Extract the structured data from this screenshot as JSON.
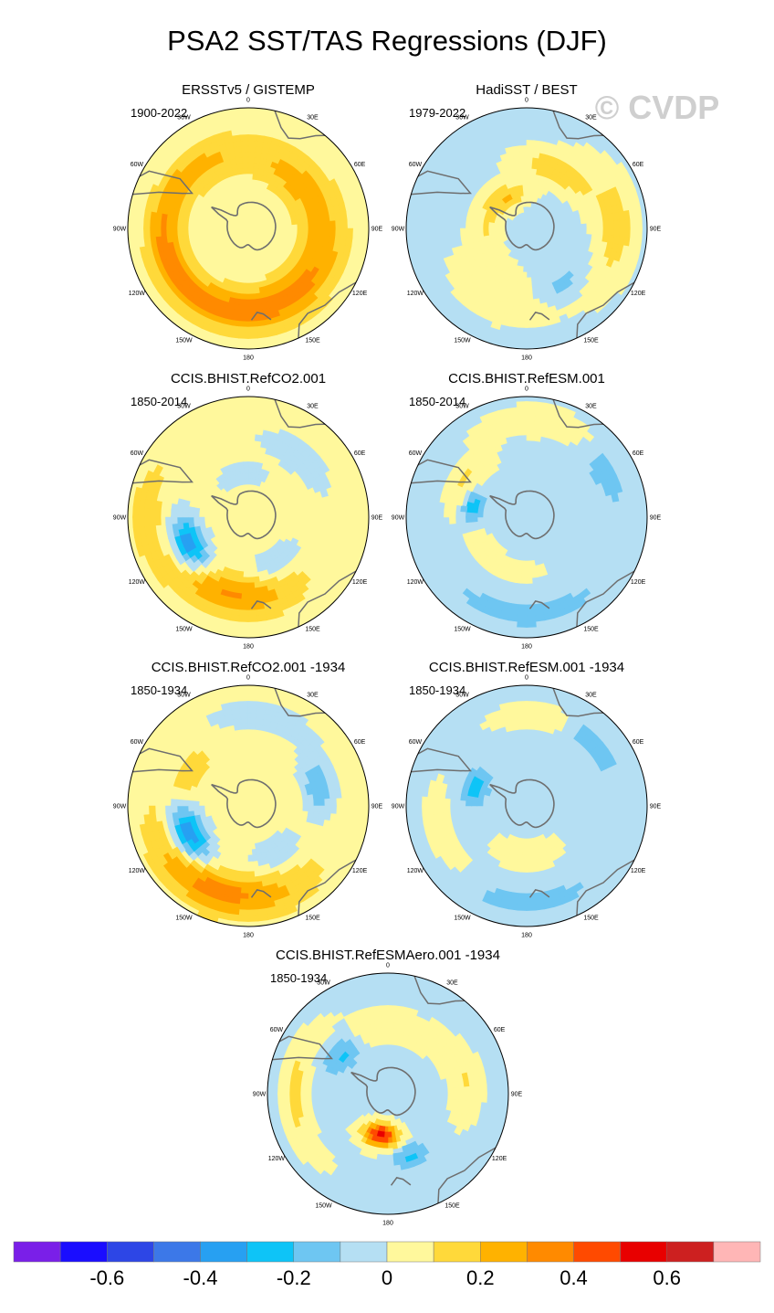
{
  "title": "PSA2 SST/TAS Regressions (DJF)",
  "watermark": "© CVDP",
  "colors": {
    "coast": "#6e6e6e",
    "outline": "#000000",
    "levels": [
      "#7a1fe8",
      "#1a0dff",
      "#2d46e6",
      "#3c78e8",
      "#27a0f2",
      "#0ec4f7",
      "#6ec6f2",
      "#b5dff3",
      "#fff89c",
      "#ffd93a",
      "#ffb200",
      "#ff8a00",
      "#ff4a00",
      "#e80000",
      "#cd2020",
      "#ffb6b6"
    ]
  },
  "chart_data": {
    "type": "polar-map",
    "projection": "south-polar stereographic",
    "variable": "PSA2 SST/TAS regression",
    "season": "DJF",
    "lon_labels": [
      "0",
      "30E",
      "60E",
      "90E",
      "120E",
      "150E",
      "180",
      "150W",
      "120W",
      "90W",
      "60W",
      "30W"
    ],
    "colorbar": {
      "orientation": "horizontal",
      "level_boundaries": [
        -0.7,
        -0.6,
        -0.5,
        -0.4,
        -0.3,
        -0.2,
        -0.1,
        0,
        0.1,
        0.2,
        0.3,
        0.4,
        0.5,
        0.6,
        0.7
      ],
      "tick_values": [
        -0.6,
        -0.4,
        -0.2,
        0,
        0.2,
        0.4,
        0.6
      ],
      "tick_labels": [
        "-0.6",
        "-0.4",
        "-0.2",
        "0",
        "0.2",
        "0.4",
        "0.6"
      ],
      "range": [
        -0.8,
        0.8
      ]
    },
    "panels": [
      {
        "title": "ERSSTv5 / GISTEMP",
        "period": "1900-2022",
        "base": 0.06,
        "features": [
          {
            "lon": 240,
            "r": 0.72,
            "w": 1.6,
            "v": 0.27,
            "rw": 0.14
          },
          {
            "lon": 140,
            "r": 0.62,
            "w": 1.3,
            "v": 0.22,
            "rw": 0.18
          },
          {
            "lon": 190,
            "r": 0.35,
            "w": 1.0,
            "v": -0.05,
            "rw": 0.18
          },
          {
            "lon": 45,
            "r": 0.55,
            "w": 0.7,
            "v": 0.15,
            "rw": 0.15
          },
          {
            "lon": 300,
            "r": 0.85,
            "w": 0.9,
            "v": -0.05,
            "rw": 0.12
          },
          {
            "lon": 320,
            "r": 0.6,
            "w": 0.8,
            "v": 0.1,
            "rw": 0.12
          }
        ]
      },
      {
        "title": "HadiSST / BEST",
        "period": "1979-2022",
        "base": -0.02,
        "features": [
          {
            "lon": 30,
            "r": 0.55,
            "w": 0.6,
            "v": 0.22,
            "rw": 0.12
          },
          {
            "lon": 200,
            "r": 0.6,
            "w": 0.7,
            "v": 0.12,
            "rw": 0.18
          },
          {
            "lon": 90,
            "r": 0.75,
            "w": 0.7,
            "v": 0.18,
            "rw": 0.15
          },
          {
            "lon": 270,
            "r": 0.35,
            "w": 0.9,
            "v": 0.12,
            "rw": 0.12
          },
          {
            "lon": 150,
            "r": 0.55,
            "w": 0.5,
            "v": -0.12,
            "rw": 0.12
          },
          {
            "lon": 330,
            "r": 0.3,
            "w": 0.6,
            "v": 0.2,
            "rw": 0.1
          }
        ]
      },
      {
        "title": "CCIS.BHIST.RefCO2.001",
        "period": "1850-2014",
        "base": 0.04,
        "features": [
          {
            "lon": 245,
            "r": 0.55,
            "w": 0.45,
            "v": -0.45,
            "rw": 0.14
          },
          {
            "lon": 195,
            "r": 0.65,
            "w": 0.9,
            "v": 0.28,
            "rw": 0.18
          },
          {
            "lon": 150,
            "r": 0.45,
            "w": 0.6,
            "v": -0.12,
            "rw": 0.15
          },
          {
            "lon": 40,
            "r": 0.65,
            "w": 0.7,
            "v": -0.08,
            "rw": 0.15
          },
          {
            "lon": 350,
            "r": 0.35,
            "w": 0.7,
            "v": -0.08,
            "rw": 0.12
          },
          {
            "lon": 270,
            "r": 0.85,
            "w": 0.6,
            "v": 0.12,
            "rw": 0.12
          }
        ]
      },
      {
        "title": "CCIS.BHIST.RefESM.001",
        "period": "1850-2014",
        "base": -0.03,
        "features": [
          {
            "lon": 280,
            "r": 0.45,
            "w": 0.35,
            "v": -0.3,
            "rw": 0.1
          },
          {
            "lon": 300,
            "r": 0.6,
            "w": 0.5,
            "v": 0.15,
            "rw": 0.1
          },
          {
            "lon": 240,
            "r": 0.45,
            "w": 1.2,
            "v": 0.12,
            "rw": 0.1
          },
          {
            "lon": 180,
            "r": 0.8,
            "w": 0.9,
            "v": -0.12,
            "rw": 0.12
          },
          {
            "lon": 60,
            "r": 0.75,
            "w": 0.4,
            "v": -0.14,
            "rw": 0.12
          },
          {
            "lon": 10,
            "r": 0.8,
            "w": 0.7,
            "v": 0.12,
            "rw": 0.12
          }
        ]
      },
      {
        "title": "CCIS.BHIST.RefCO2.001 -1934",
        "period": "1850-1934",
        "base": 0.04,
        "features": [
          {
            "lon": 245,
            "r": 0.55,
            "w": 0.45,
            "v": -0.45,
            "rw": 0.14
          },
          {
            "lon": 200,
            "r": 0.75,
            "w": 1.0,
            "v": 0.3,
            "rw": 0.18
          },
          {
            "lon": 75,
            "r": 0.6,
            "w": 0.4,
            "v": -0.22,
            "rw": 0.12
          },
          {
            "lon": 10,
            "r": 0.75,
            "w": 0.8,
            "v": -0.08,
            "rw": 0.15
          },
          {
            "lon": 150,
            "r": 0.45,
            "w": 0.6,
            "v": -0.1,
            "rw": 0.15
          },
          {
            "lon": 300,
            "r": 0.55,
            "w": 0.5,
            "v": 0.12,
            "rw": 0.12
          }
        ]
      },
      {
        "title": "CCIS.BHIST.RefESM.001 -1934",
        "period": "1850-1934",
        "base": -0.03,
        "features": [
          {
            "lon": 290,
            "r": 0.45,
            "w": 0.35,
            "v": -0.25,
            "rw": 0.1
          },
          {
            "lon": 45,
            "r": 0.75,
            "w": 0.4,
            "v": -0.22,
            "rw": 0.1
          },
          {
            "lon": 15,
            "r": 0.75,
            "w": 0.6,
            "v": 0.15,
            "rw": 0.1
          },
          {
            "lon": 180,
            "r": 0.4,
            "w": 0.7,
            "v": 0.12,
            "rw": 0.12
          },
          {
            "lon": 180,
            "r": 0.8,
            "w": 0.8,
            "v": -0.12,
            "rw": 0.1
          },
          {
            "lon": 250,
            "r": 0.75,
            "w": 0.6,
            "v": 0.1,
            "rw": 0.12
          }
        ]
      },
      {
        "title": "CCIS.BHIST.RefESMAero.001 -1934",
        "period": "1850-1934",
        "base": -0.02,
        "features": [
          {
            "lon": 190,
            "r": 0.35,
            "w": 0.4,
            "v": 0.58,
            "rw": 0.1
          },
          {
            "lon": 310,
            "r": 0.5,
            "w": 0.35,
            "v": -0.22,
            "rw": 0.12
          },
          {
            "lon": 160,
            "r": 0.55,
            "w": 0.3,
            "v": -0.2,
            "rw": 0.1
          },
          {
            "lon": 0,
            "r": 0.55,
            "w": 0.8,
            "v": 0.12,
            "rw": 0.12
          },
          {
            "lon": 270,
            "r": 0.78,
            "w": 0.7,
            "v": 0.15,
            "rw": 0.1
          },
          {
            "lon": 80,
            "r": 0.65,
            "w": 0.5,
            "v": 0.12,
            "rw": 0.12
          }
        ]
      }
    ]
  }
}
